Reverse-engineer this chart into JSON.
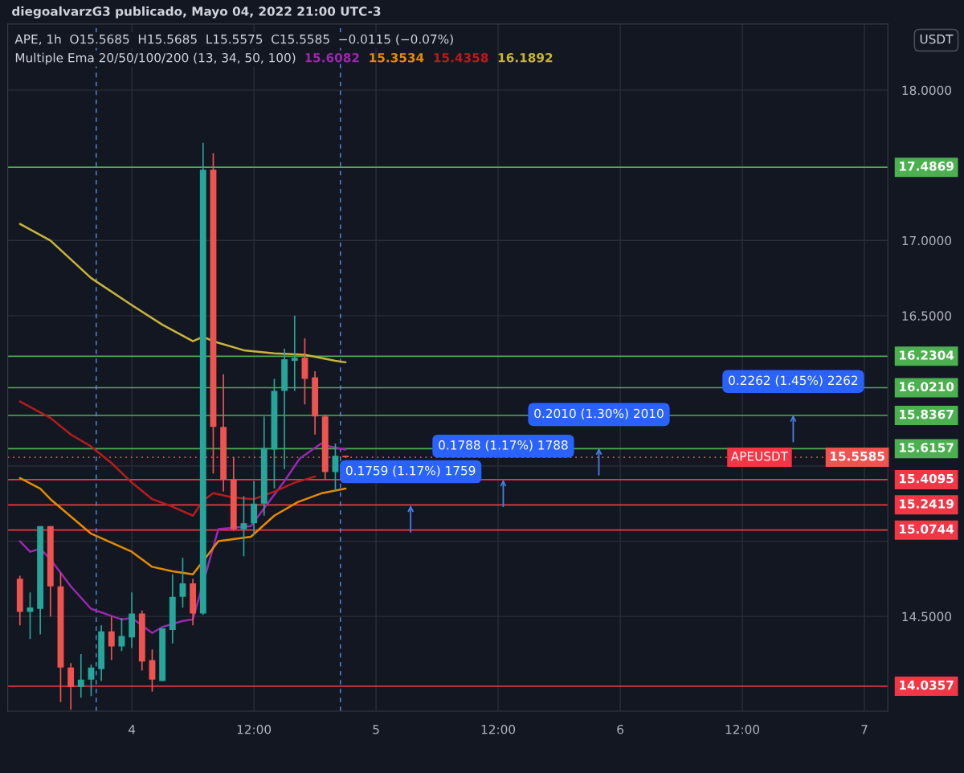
{
  "chart_data": {
    "type": "candlestick",
    "title": "diegoalvarzG3 publicado, Mayo 04, 2022 21:00 UTC-3",
    "subtitle": "APE, 1h  O15.5685  H15.5685  L15.5575  C15.5585  −0.0115 (−0.07%)",
    "x": [
      "2022-05-03T13:00",
      "2022-05-03T14:00",
      "2022-05-03T15:00",
      "2022-05-03T16:00",
      "2022-05-03T17:00",
      "2022-05-03T18:00",
      "2022-05-03T19:00",
      "2022-05-03T20:00",
      "2022-05-03T21:00",
      "2022-05-03T22:00",
      "2022-05-03T23:00",
      "2022-05-04T00:00",
      "2022-05-04T01:00",
      "2022-05-04T02:00",
      "2022-05-04T03:00",
      "2022-05-04T04:00",
      "2022-05-04T05:00",
      "2022-05-04T06:00",
      "2022-05-04T07:00",
      "2022-05-04T08:00",
      "2022-05-04T09:00",
      "2022-05-04T10:00",
      "2022-05-04T11:00",
      "2022-05-04T12:00",
      "2022-05-04T13:00",
      "2022-05-04T14:00",
      "2022-05-04T15:00",
      "2022-05-04T16:00",
      "2022-05-04T17:00",
      "2022-05-04T18:00",
      "2022-05-04T19:00",
      "2022-05-04T20:00",
      "2022-05-04T21:00"
    ],
    "ohlc": [
      [
        14.75,
        14.77,
        14.44,
        14.53
      ],
      [
        14.53,
        14.66,
        14.35,
        14.56
      ],
      [
        14.55,
        15.1,
        14.38,
        15.1
      ],
      [
        15.1,
        15.1,
        14.5,
        14.7
      ],
      [
        14.7,
        14.79,
        13.93,
        14.16
      ],
      [
        14.16,
        14.19,
        13.88,
        14.03
      ],
      [
        14.03,
        14.25,
        13.96,
        14.08
      ],
      [
        14.08,
        14.18,
        13.97,
        14.16
      ],
      [
        14.15,
        14.44,
        14.07,
        14.4
      ],
      [
        14.4,
        14.5,
        14.21,
        14.3
      ],
      [
        14.3,
        14.49,
        14.27,
        14.37
      ],
      [
        14.36,
        14.66,
        14.29,
        14.52
      ],
      [
        14.52,
        14.54,
        14.14,
        14.2
      ],
      [
        14.21,
        14.28,
        14.0,
        14.08
      ],
      [
        14.07,
        14.42,
        14.07,
        14.42
      ],
      [
        14.41,
        14.78,
        14.32,
        14.63
      ],
      [
        14.63,
        14.89,
        14.56,
        14.72
      ],
      [
        14.72,
        14.75,
        14.44,
        14.52
      ],
      [
        14.52,
        17.65,
        14.51,
        17.47
      ],
      [
        17.47,
        17.58,
        15.45,
        15.76
      ],
      [
        15.76,
        16.11,
        15.33,
        15.41
      ],
      [
        15.41,
        15.56,
        15.07,
        15.08
      ],
      [
        15.08,
        15.3,
        14.9,
        15.12
      ],
      [
        15.12,
        15.4,
        15.04,
        15.25
      ],
      [
        15.25,
        15.83,
        15.17,
        15.62
      ],
      [
        15.61,
        16.08,
        15.35,
        16.0
      ],
      [
        16.0,
        16.28,
        15.48,
        16.21
      ],
      [
        16.2,
        16.5,
        16.0,
        16.22
      ],
      [
        16.22,
        16.35,
        15.91,
        16.08
      ],
      [
        16.09,
        16.13,
        15.71,
        15.83
      ],
      [
        15.83,
        15.84,
        15.41,
        15.46
      ],
      [
        15.46,
        15.65,
        15.33,
        15.5685
      ],
      [
        15.5685,
        15.5685,
        15.5575,
        15.5585
      ]
    ],
    "colors": [
      "#ef5350",
      "#26a69a",
      "#26a69a",
      "#ef5350",
      "#ef5350",
      "#ef5350",
      "#26a69a",
      "#26a69a",
      "#26a69a",
      "#ef5350",
      "#26a69a",
      "#26a69a",
      "#ef5350",
      "#ef5350",
      "#26a69a",
      "#26a69a",
      "#26a69a",
      "#ef5350",
      "#26a69a",
      "#ef5350",
      "#ef5350",
      "#ef5350",
      "#26a69a",
      "#26a69a",
      "#26a69a",
      "#26a69a",
      "#26a69a",
      "#26a69a",
      "#ef5350",
      "#ef5350",
      "#ef5350",
      "#26a69a",
      "#ef5350"
    ],
    "series": [
      {
        "type": "line",
        "name": "15.6082",
        "color": "#9c27b0",
        "x": [
          "2022-05-03T13:00",
          "2022-05-03T14:00",
          "2022-05-03T15:00",
          "2022-05-03T16:00",
          "2022-05-03T18:00",
          "2022-05-03T20:00",
          "2022-05-03T23:00",
          "2022-05-04T00:00",
          "2022-05-04T02:00",
          "2022-05-04T03:00",
          "2022-05-04T05:00",
          "2022-05-04T06:00",
          "2022-05-04T08:30",
          "2022-05-04T11:42",
          "2022-05-04T13:00",
          "2022-05-04T15:00",
          "2022-05-04T16:30",
          "2022-05-04T18:36",
          "2022-05-04T19:30",
          "2022-05-04T21:00"
        ],
        "values": [
          15.0,
          14.93,
          14.95,
          14.88,
          14.7,
          14.55,
          14.48,
          14.49,
          14.39,
          14.43,
          14.47,
          14.48,
          15.08,
          15.1,
          15.22,
          15.4,
          15.55,
          15.65,
          15.63,
          15.61
        ]
      },
      {
        "type": "line",
        "name": "15.3534",
        "color": "#e68a00",
        "x": [
          "2022-05-03T13:00",
          "2022-05-03T15:00",
          "2022-05-03T16:00",
          "2022-05-03T20:00",
          "2022-05-04T00:00",
          "2022-05-04T02:00",
          "2022-05-04T04:00",
          "2022-05-04T06:00",
          "2022-05-04T08:30",
          "2022-05-04T11:42",
          "2022-05-04T14:00",
          "2022-05-04T16:18",
          "2022-05-04T18:42",
          "2022-05-04T21:00"
        ],
        "values": [
          15.42,
          15.35,
          15.28,
          15.05,
          14.93,
          14.83,
          14.8,
          14.78,
          15.0,
          15.03,
          15.17,
          15.26,
          15.32,
          15.35
        ]
      },
      {
        "type": "line",
        "name": "15.4358",
        "color": "#b71c1c",
        "x": [
          "2022-05-03T13:00",
          "2022-05-03T16:00",
          "2022-05-03T18:00",
          "2022-05-03T20:00",
          "2022-05-03T22:00",
          "2022-05-04T00:00",
          "2022-05-04T02:00",
          "2022-05-04T04:00",
          "2022-05-04T06:00",
          "2022-05-04T07:00",
          "2022-05-04T08:00",
          "2022-05-04T10:00",
          "2022-05-04T12:00",
          "2022-05-04T14:00",
          "2022-05-04T16:00",
          "2022-05-04T18:00"
        ],
        "values": [
          15.93,
          15.82,
          15.71,
          15.63,
          15.52,
          15.39,
          15.28,
          15.23,
          15.17,
          15.27,
          15.32,
          15.29,
          15.28,
          15.33,
          15.39,
          15.43
        ]
      },
      {
        "type": "line",
        "name": "16.1892",
        "color": "#c8b53a",
        "x": [
          "2022-05-03T13:00",
          "2022-05-03T16:00",
          "2022-05-03T20:00",
          "2022-05-04T00:00",
          "2022-05-04T03:00",
          "2022-05-04T06:00",
          "2022-05-04T07:00",
          "2022-05-04T08:00",
          "2022-05-04T11:00",
          "2022-05-04T14:00",
          "2022-05-04T17:00",
          "2022-05-04T20:00",
          "2022-05-04T21:00"
        ],
        "values": [
          17.11,
          17.0,
          16.75,
          16.57,
          16.44,
          16.33,
          16.36,
          16.33,
          16.27,
          16.25,
          16.24,
          16.2,
          16.19
        ]
      }
    ],
    "xlim": [
      "2022-05-03T11:48",
      "2022-05-07T02:18"
    ],
    "xticks": [
      {
        "value": "2022-05-04T00:00",
        "label": "4"
      },
      {
        "value": "2022-05-04T12:00",
        "label": "12:00"
      },
      {
        "value": "2022-05-05T00:00",
        "label": "5"
      },
      {
        "value": "2022-05-05T12:00",
        "label": "12:00"
      },
      {
        "value": "2022-05-06T00:00",
        "label": "6"
      },
      {
        "value": "2022-05-06T12:00",
        "label": "12:00"
      },
      {
        "value": "2022-05-07T00:00",
        "label": "7"
      }
    ],
    "ylim": [
      13.87,
      18.44
    ],
    "yticks": [
      {
        "value": 14.5,
        "label": "14.5000"
      },
      {
        "value": 15.0,
        "label": null
      },
      {
        "value": 15.5,
        "label": null
      },
      {
        "value": 16.5,
        "label": "16.5000"
      },
      {
        "value": 17.0,
        "label": "17.0000"
      },
      {
        "value": 18.0,
        "label": "18.0000"
      }
    ],
    "grid": true,
    "ref_lines": [
      {
        "axis": "y",
        "value": 17.4869,
        "label": "17.4869",
        "color": "#4caf50"
      },
      {
        "axis": "y",
        "value": 16.2304,
        "label": "16.2304",
        "color": "#4caf50"
      },
      {
        "axis": "y",
        "value": 16.021,
        "label": "16.0210",
        "color": "#4caf50"
      },
      {
        "axis": "y",
        "value": 15.8367,
        "label": "15.8367",
        "color": "#4caf50"
      },
      {
        "axis": "y",
        "value": 15.6157,
        "label": "15.6157",
        "color": "#4caf50"
      },
      {
        "axis": "y",
        "value": 15.5585,
        "label": "15.5585",
        "color": "#ef5350",
        "line_style": "dotted"
      },
      {
        "axis": "y",
        "value": 15.4095,
        "label": "15.4095",
        "color": "#f23645"
      },
      {
        "axis": "y",
        "value": 15.2419,
        "label": "15.2419",
        "color": "#f23645"
      },
      {
        "axis": "y",
        "value": 15.0744,
        "label": "15.0744",
        "color": "#f23645"
      },
      {
        "axis": "y",
        "value": 14.0357,
        "label": "14.0357",
        "color": "#f23645"
      },
      {
        "axis": "x",
        "value": "2022-05-03T20:30",
        "label": null,
        "color": "#5b8fd9",
        "line_style": "dashed"
      },
      {
        "axis": "x",
        "value": "2022-05-04T20:30",
        "label": null,
        "color": "#5b8fd9",
        "line_style": "dashed"
      }
    ],
    "annotations": [
      "Multiple Ema 20/50/100/200 (13, 34, 50, 100)",
      "USDT",
      {
        "text": "APEUSDT",
        "x": "2022-05-06T16:30",
        "y": 15.5585
      },
      {
        "text": "0.1759 (1.17%) 1759",
        "x": "2022-05-05T03:24",
        "y": 15.24
      },
      {
        "text": "0.1788 (1.17%) 1788",
        "x": "2022-05-05T12:30",
        "y": 15.41
      },
      {
        "text": "0.2010 (1.30%) 2010",
        "x": "2022-05-05T21:54",
        "y": 15.62
      },
      {
        "text": "0.2262 (1.45%) 2262",
        "x": "2022-05-06T17:00",
        "y": 15.84
      }
    ]
  }
}
